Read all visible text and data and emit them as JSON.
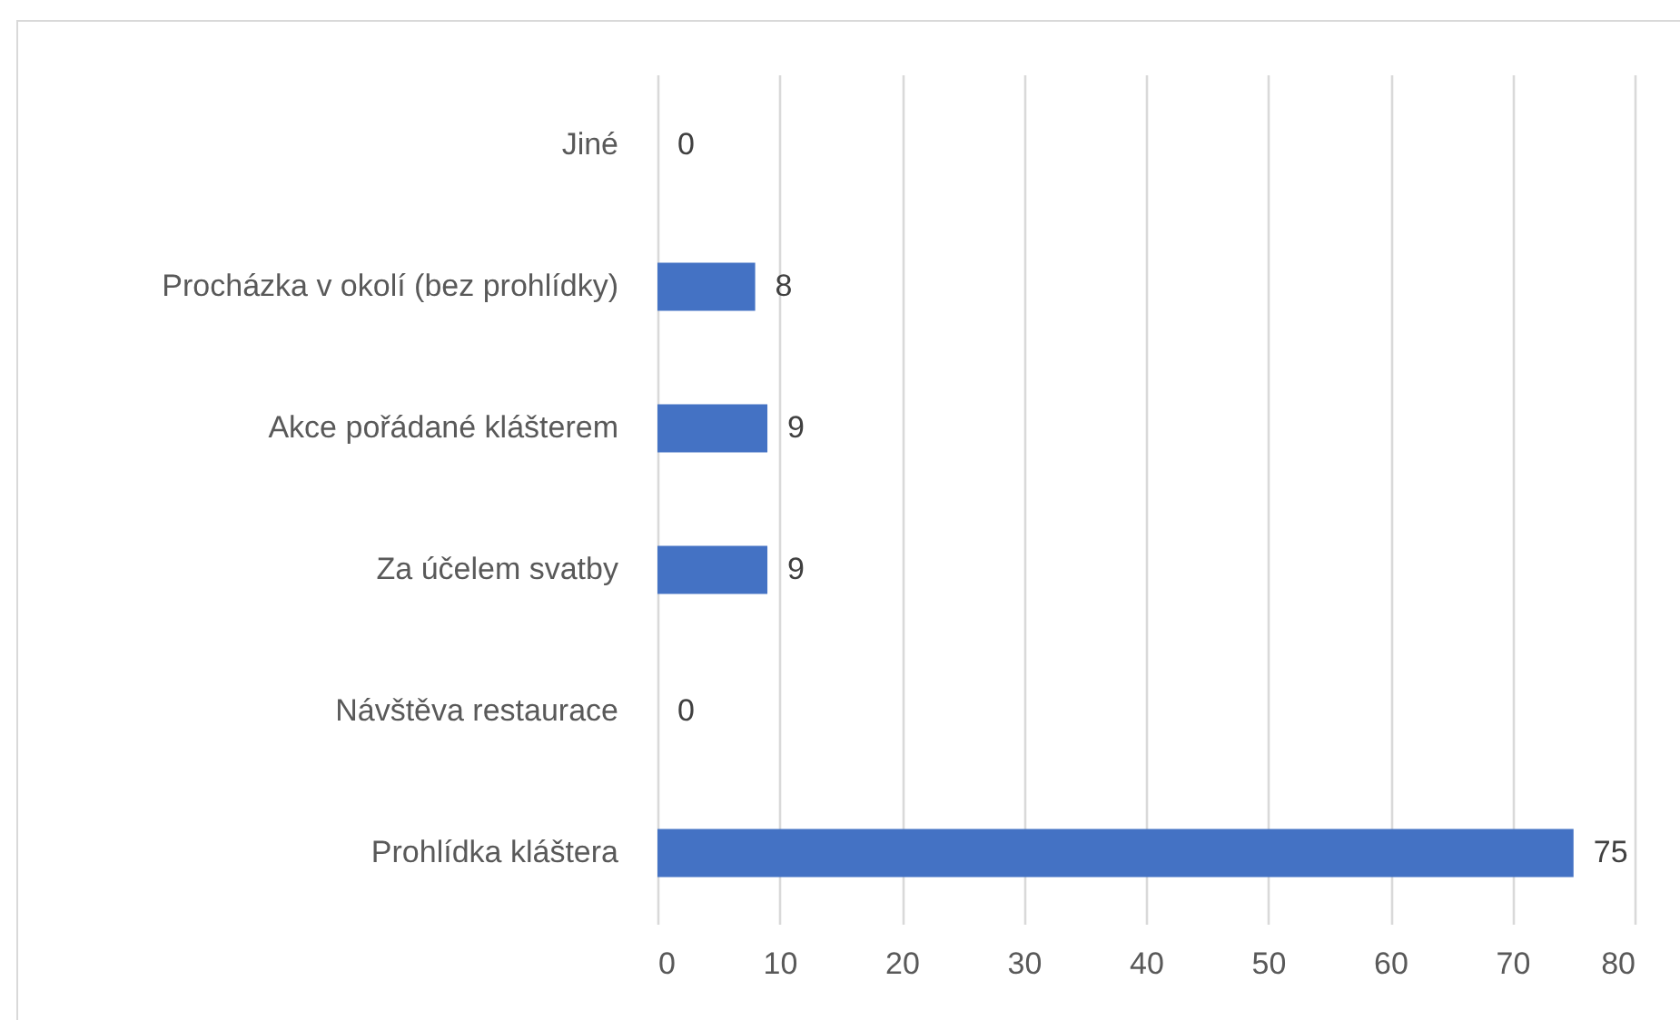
{
  "chart_data": {
    "type": "bar",
    "orientation": "horizontal",
    "categories": [
      "Jiné",
      "Procházka v okolí (bez prohlídky)",
      "Akce pořádané klášterem",
      "Za účelem svatby",
      "Návštěva restaurace",
      "Prohlídka kláštera"
    ],
    "values": [
      0,
      8,
      9,
      9,
      0,
      75
    ],
    "color": "#4472c4",
    "xlim": [
      0,
      80
    ],
    "xticks": [
      0,
      10,
      20,
      30,
      40,
      50,
      60,
      70,
      80
    ],
    "grid": "x",
    "data_labels": true
  }
}
